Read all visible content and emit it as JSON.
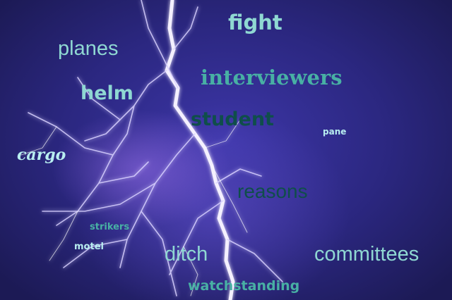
{
  "words": {
    "fight": "fight",
    "planes": "planes",
    "interviewers": "interviewers",
    "helm": "helm",
    "student": "student",
    "pane": "pane",
    "cargo": "cargo",
    "reasons": "reasons",
    "strikers": "strikers",
    "motel": "motel",
    "ditch": "ditch",
    "committees": "committees",
    "watchstanding": "watchstanding"
  },
  "colors": {
    "teal_light": "#8fd8d2",
    "teal_mid": "#48b0a4",
    "teal_dark": "#0f4e4a",
    "cyan_pale": "#b8eef0",
    "sky_dark": "#1a2a66"
  }
}
